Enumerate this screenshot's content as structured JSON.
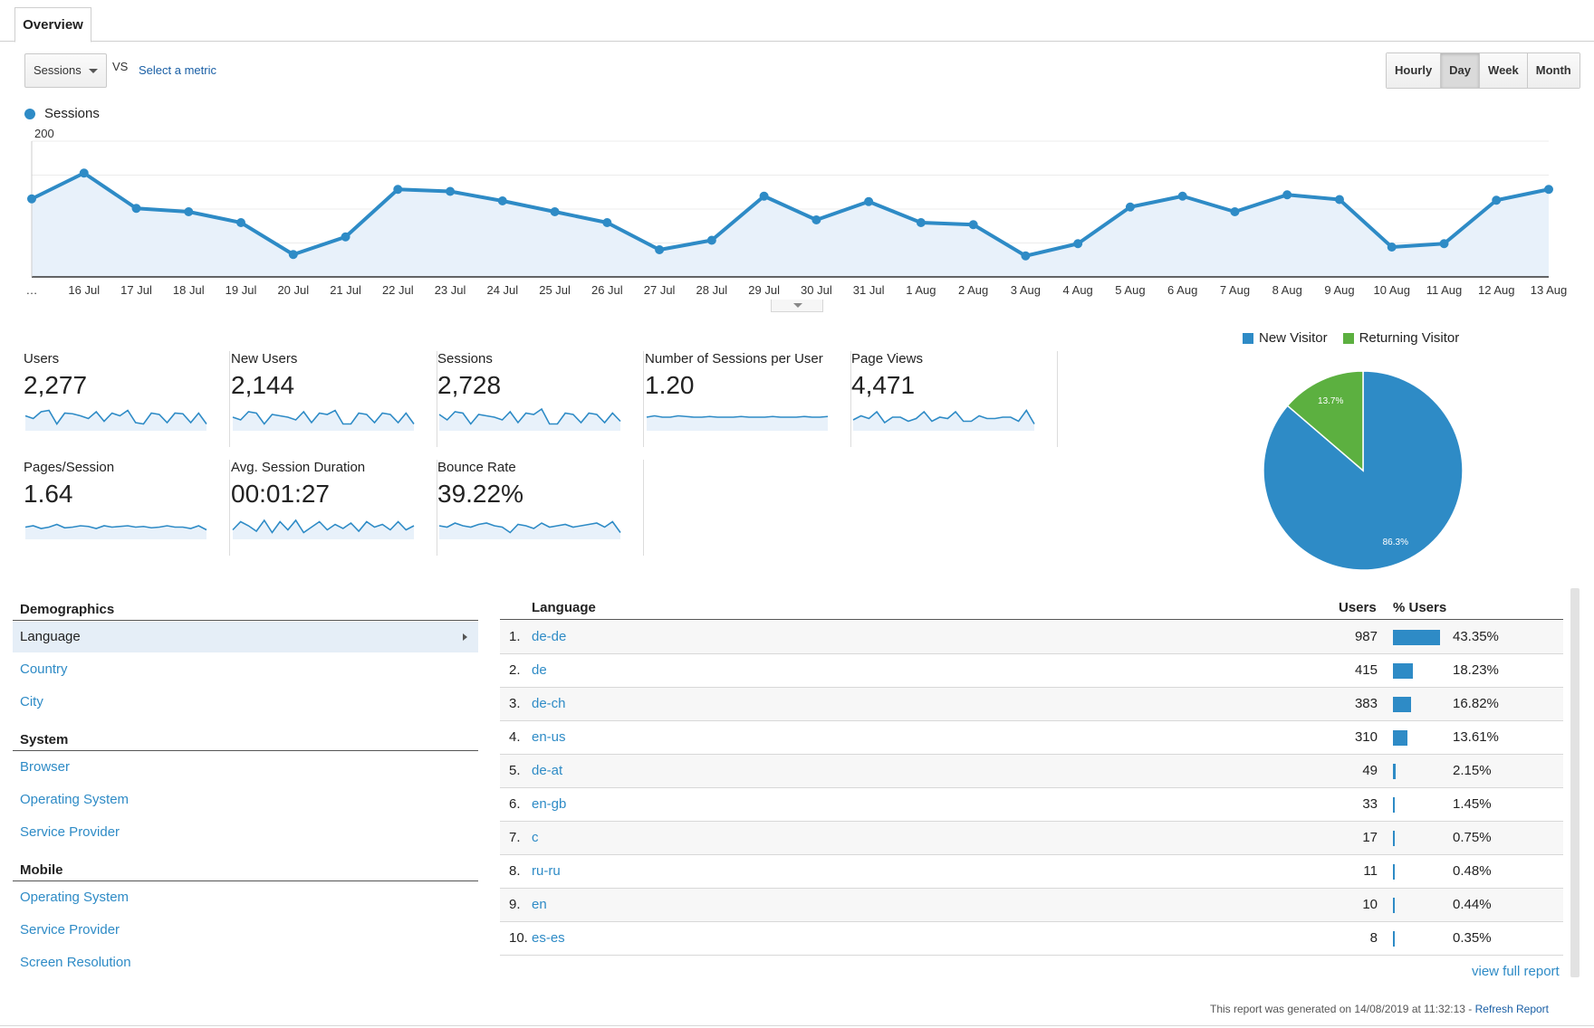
{
  "tabs": [
    {
      "label": "Overview"
    }
  ],
  "metric_selector": {
    "selected": "Sessions",
    "vs_label": "VS",
    "secondary_link": "Select a metric"
  },
  "granularity": [
    {
      "label": "Hourly",
      "active": false
    },
    {
      "label": "Day",
      "active": true
    },
    {
      "label": "Week",
      "active": false
    },
    {
      "label": "Month",
      "active": false
    }
  ],
  "chart_data": [
    {
      "type": "area",
      "series": [
        {
          "name": "Sessions",
          "values": [
            115,
            153,
            101,
            96,
            80,
            33,
            59,
            129,
            126,
            112,
            96,
            80,
            40,
            54,
            119,
            84,
            111,
            80,
            77,
            31,
            49,
            103,
            119,
            96,
            121,
            114,
            44,
            49,
            113,
            129
          ]
        }
      ],
      "categories": [
        "…",
        "16 Jul",
        "17 Jul",
        "18 Jul",
        "19 Jul",
        "20 Jul",
        "21 Jul",
        "22 Jul",
        "23 Jul",
        "24 Jul",
        "25 Jul",
        "26 Jul",
        "27 Jul",
        "28 Jul",
        "29 Jul",
        "30 Jul",
        "31 Jul",
        "1 Aug",
        "2 Aug",
        "3 Aug",
        "4 Aug",
        "5 Aug",
        "6 Aug",
        "7 Aug",
        "8 Aug",
        "9 Aug",
        "10 Aug",
        "11 Aug",
        "12 Aug",
        "13 Aug"
      ],
      "y_ticks": [
        "200",
        "100"
      ],
      "ylim": [
        0,
        200
      ],
      "grid": true,
      "color": "#2e8bc6",
      "fill": "#e8f1fa"
    },
    {
      "type": "pie",
      "series": [
        {
          "name": "New Visitor",
          "value": 86.3,
          "label": "86.3%",
          "color": "#2e8bc6"
        },
        {
          "name": "Returning Visitor",
          "value": 13.7,
          "label": "13.7%",
          "color": "#5cb040"
        }
      ],
      "legend": "top"
    }
  ],
  "scorecards": [
    {
      "label": "Users",
      "value": "2,277",
      "spark": [
        52,
        48,
        58,
        60,
        40,
        56,
        55,
        52,
        48,
        58,
        44,
        56,
        52,
        60,
        42,
        40,
        56,
        54,
        42,
        56,
        55,
        42,
        56,
        40
      ]
    },
    {
      "label": "New Users",
      "value": "2,144",
      "spark": [
        50,
        46,
        58,
        56,
        40,
        54,
        52,
        50,
        46,
        58,
        42,
        56,
        54,
        60,
        40,
        40,
        56,
        54,
        42,
        56,
        54,
        42,
        56,
        40
      ]
    },
    {
      "label": "Sessions",
      "value": "2,728",
      "spark": [
        54,
        46,
        58,
        56,
        40,
        54,
        52,
        50,
        46,
        58,
        42,
        56,
        54,
        62,
        40,
        40,
        56,
        54,
        42,
        56,
        54,
        42,
        56,
        44
      ]
    },
    {
      "label": "Number of Sessions per User",
      "value": "1.20",
      "spark": [
        50,
        52,
        50,
        50,
        52,
        51,
        50,
        50,
        51,
        50,
        50,
        50,
        51,
        50,
        50,
        50,
        51,
        50,
        50,
        50,
        51,
        50,
        50,
        51
      ]
    },
    {
      "label": "Page Views",
      "value": "4,471",
      "spark": [
        46,
        52,
        48,
        58,
        42,
        50,
        50,
        44,
        48,
        58,
        44,
        50,
        48,
        58,
        44,
        44,
        52,
        48,
        48,
        50,
        50,
        44,
        60,
        40
      ]
    },
    {
      "label": "Pages/Session",
      "value": "1.64",
      "spark": [
        48,
        50,
        46,
        48,
        52,
        47,
        48,
        50,
        49,
        46,
        50,
        48,
        49,
        50,
        48,
        49,
        47,
        48,
        50,
        48,
        48,
        46,
        50,
        44
      ]
    },
    {
      "label": "Avg. Session Duration",
      "value": "00:01:27",
      "spark": [
        44,
        56,
        50,
        42,
        58,
        40,
        56,
        44,
        58,
        40,
        48,
        56,
        44,
        52,
        46,
        54,
        42,
        56,
        48,
        52,
        44,
        56,
        44,
        50
      ]
    },
    {
      "label": "Bounce Rate",
      "value": "39.22%",
      "spark": [
        50,
        48,
        54,
        50,
        48,
        52,
        54,
        50,
        48,
        40,
        52,
        50,
        46,
        54,
        48,
        50,
        52,
        48,
        50,
        52,
        54,
        48,
        56,
        40
      ]
    }
  ],
  "nav": {
    "sections": [
      {
        "heading": "Demographics",
        "items": [
          "Language",
          "Country",
          "City"
        ]
      },
      {
        "heading": "System",
        "items": [
          "Browser",
          "Operating System",
          "Service Provider"
        ]
      },
      {
        "heading": "Mobile",
        "items": [
          "Operating System",
          "Service Provider",
          "Screen Resolution"
        ]
      }
    ],
    "active_item": "Language"
  },
  "table": {
    "headers": {
      "dimension": "Language",
      "users": "Users",
      "pct_users": "% Users"
    },
    "rows": [
      {
        "index": "1.",
        "language": "de-de",
        "users": "987",
        "pct": "43.35%",
        "fraction": 0.4335
      },
      {
        "index": "2.",
        "language": "de",
        "users": "415",
        "pct": "18.23%",
        "fraction": 0.1823
      },
      {
        "index": "3.",
        "language": "de-ch",
        "users": "383",
        "pct": "16.82%",
        "fraction": 0.1682
      },
      {
        "index": "4.",
        "language": "en-us",
        "users": "310",
        "pct": "13.61%",
        "fraction": 0.1361
      },
      {
        "index": "5.",
        "language": "de-at",
        "users": "49",
        "pct": "2.15%",
        "fraction": 0.0215
      },
      {
        "index": "6.",
        "language": "en-gb",
        "users": "33",
        "pct": "1.45%",
        "fraction": 0.0145
      },
      {
        "index": "7.",
        "language": "c",
        "users": "17",
        "pct": "0.75%",
        "fraction": 0.0075
      },
      {
        "index": "8.",
        "language": "ru-ru",
        "users": "11",
        "pct": "0.48%",
        "fraction": 0.0048
      },
      {
        "index": "9.",
        "language": "en",
        "users": "10",
        "pct": "0.44%",
        "fraction": 0.0044
      },
      {
        "index": "10.",
        "language": "es-es",
        "users": "8",
        "pct": "0.35%",
        "fraction": 0.0035
      }
    ],
    "view_full_report": "view full report"
  },
  "footer": {
    "text": "This report was generated on 14/08/2019 at 11:32:13 - ",
    "refresh": "Refresh Report"
  }
}
